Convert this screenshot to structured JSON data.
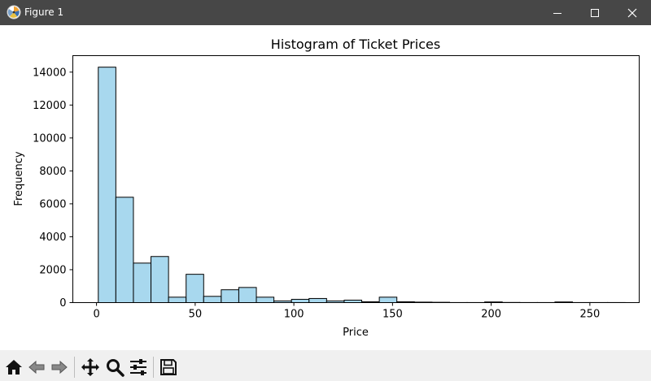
{
  "window": {
    "title": "Figure 1",
    "buttons": [
      "minimize",
      "maximize",
      "close"
    ]
  },
  "toolbar": {
    "tools": [
      {
        "name": "home-icon"
      },
      {
        "name": "back-icon"
      },
      {
        "name": "forward-icon"
      },
      {
        "name": "pan-icon"
      },
      {
        "name": "zoom-icon"
      },
      {
        "name": "configure-subplots-icon"
      },
      {
        "name": "save-icon"
      }
    ]
  },
  "chart_data": {
    "type": "bar",
    "title": "Histogram of Ticket Prices",
    "xlabel": "Price",
    "ylabel": "Frequency",
    "xlim": [
      -12,
      275
    ],
    "ylim": [
      0,
      15000
    ],
    "xticks": [
      0,
      50,
      100,
      150,
      200,
      250
    ],
    "yticks": [
      0,
      2000,
      4000,
      6000,
      8000,
      10000,
      12000,
      14000
    ],
    "bar_color": "#a8d8ee",
    "edge_color": "#000000",
    "bins": [
      {
        "x0": 0.9,
        "x1": 9.8,
        "value": 14300
      },
      {
        "x0": 9.8,
        "x1": 18.7,
        "value": 6400
      },
      {
        "x0": 18.7,
        "x1": 27.6,
        "value": 2400
      },
      {
        "x0": 27.6,
        "x1": 36.5,
        "value": 2800
      },
      {
        "x0": 36.5,
        "x1": 45.4,
        "value": 330
      },
      {
        "x0": 45.4,
        "x1": 54.3,
        "value": 1720
      },
      {
        "x0": 54.3,
        "x1": 63.2,
        "value": 380
      },
      {
        "x0": 63.2,
        "x1": 72.1,
        "value": 780
      },
      {
        "x0": 72.1,
        "x1": 81.0,
        "value": 920
      },
      {
        "x0": 81.0,
        "x1": 89.9,
        "value": 330
      },
      {
        "x0": 89.9,
        "x1": 98.8,
        "value": 100
      },
      {
        "x0": 98.8,
        "x1": 107.7,
        "value": 200
      },
      {
        "x0": 107.7,
        "x1": 116.6,
        "value": 250
      },
      {
        "x0": 116.6,
        "x1": 125.5,
        "value": 100
      },
      {
        "x0": 125.5,
        "x1": 134.4,
        "value": 150
      },
      {
        "x0": 134.4,
        "x1": 143.3,
        "value": 50
      },
      {
        "x0": 143.3,
        "x1": 152.2,
        "value": 330
      },
      {
        "x0": 152.2,
        "x1": 161.1,
        "value": 50
      },
      {
        "x0": 161.1,
        "x1": 170.0,
        "value": 30
      },
      {
        "x0": 170.0,
        "x1": 178.9,
        "value": 20
      },
      {
        "x0": 178.9,
        "x1": 187.8,
        "value": 5
      },
      {
        "x0": 187.8,
        "x1": 196.7,
        "value": 5
      },
      {
        "x0": 196.7,
        "x1": 205.6,
        "value": 40
      },
      {
        "x0": 205.6,
        "x1": 214.5,
        "value": 10
      },
      {
        "x0": 214.5,
        "x1": 223.4,
        "value": 5
      },
      {
        "x0": 223.4,
        "x1": 232.3,
        "value": 5
      },
      {
        "x0": 232.3,
        "x1": 241.2,
        "value": 40
      },
      {
        "x0": 241.2,
        "x1": 250.1,
        "value": 5
      },
      {
        "x0": 250.1,
        "x1": 259.0,
        "value": 5
      },
      {
        "x0": 259.0,
        "x1": 267.9,
        "value": 5
      }
    ]
  }
}
